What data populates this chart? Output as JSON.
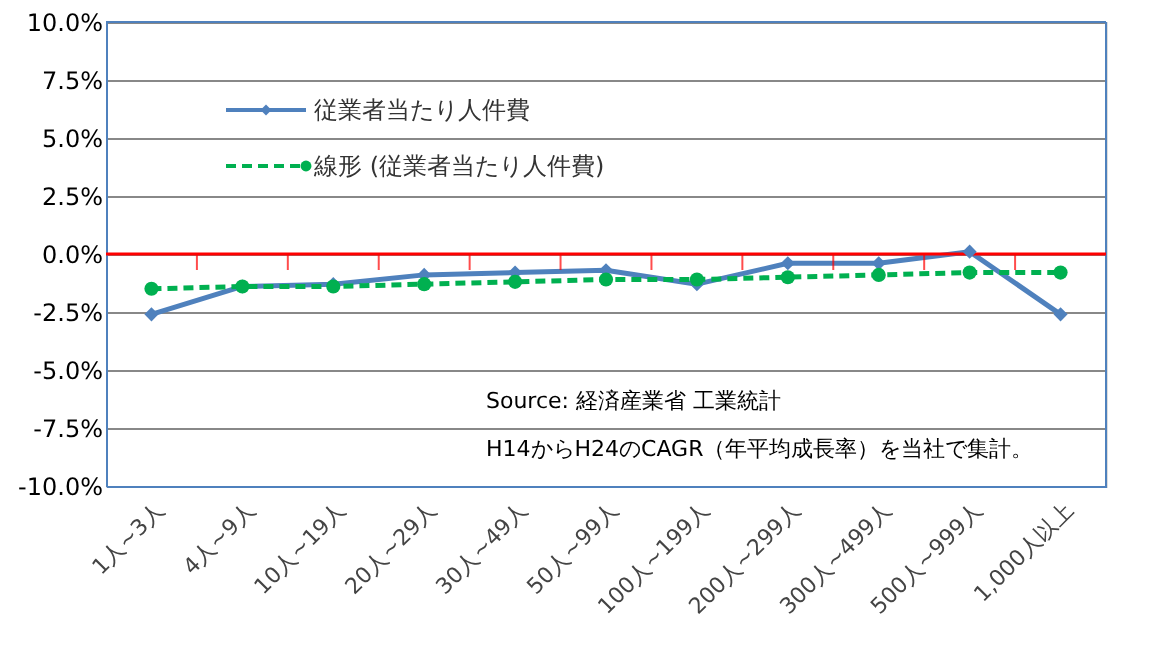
{
  "chart_data": {
    "type": "line",
    "categories": [
      "1人~3人",
      "4人~9人",
      "10人~19人",
      "20人~29人",
      "30人~49人",
      "50人~99人",
      "100人~199人",
      "200人~299人",
      "300人~499人",
      "500人~999人",
      "1,000人以上"
    ],
    "series": [
      {
        "name": "従業者当たり人件費",
        "color": "#4f81bd",
        "marker": "diamond",
        "line_style": "solid",
        "values": [
          -2.6,
          -1.4,
          -1.3,
          -0.9,
          -0.8,
          -0.7,
          -1.3,
          -0.4,
          -0.4,
          0.1,
          -2.6
        ]
      },
      {
        "name": "線形 (従業者当たり人件費)",
        "color": "#00b050",
        "marker": "circle",
        "line_style": "dashed",
        "values": [
          -1.5,
          -1.4,
          -1.4,
          -1.3,
          -1.2,
          -1.1,
          -1.1,
          -1.0,
          -0.9,
          -0.8,
          -0.8
        ]
      }
    ],
    "ylim": [
      -10,
      10
    ],
    "yticks": [
      {
        "value": -10,
        "label": "-10.0%"
      },
      {
        "value": -7.5,
        "label": "-7.5%"
      },
      {
        "value": -5,
        "label": "-5.0%"
      },
      {
        "value": -2.5,
        "label": "-2.5%"
      },
      {
        "value": 0,
        "label": "0.0%"
      },
      {
        "value": 2.5,
        "label": "2.5%"
      },
      {
        "value": 5,
        "label": "5.0%"
      },
      {
        "value": 7.5,
        "label": "7.5%"
      },
      {
        "value": 10,
        "label": "10.0%"
      }
    ],
    "ref_lines": [
      {
        "axis": "y",
        "value": 0,
        "color": "#ff0000"
      }
    ],
    "grid": "y",
    "legend": "top left",
    "annotations": [
      "Source: 経済産業省 工業統計",
      "H14からH24のCAGR（年平均成長率）を当社で集計。"
    ]
  }
}
